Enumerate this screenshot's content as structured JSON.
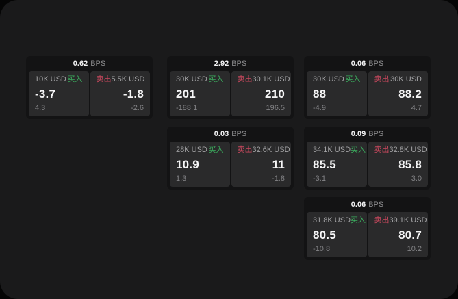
{
  "window": {
    "outer_background": "#050505",
    "panel_background": "#1a1a1b"
  },
  "colors": {
    "buy_green": "#3bae5e",
    "sell_red": "#c9485e",
    "card_background": "#131314",
    "tile_background": "#2a2a2b",
    "value_white": "#f5f5f6",
    "label_gray": "#a2a2a4",
    "sub_gray": "#828285"
  },
  "labels": {
    "bps_unit": "BPS",
    "buy": "买入",
    "sell": "卖出"
  },
  "cards": [
    {
      "row": 0,
      "col": 0,
      "bps": "0.62",
      "buy": {
        "size": "10K USD",
        "value": "-3.7",
        "sub": "4.3"
      },
      "sell": {
        "size": "5.5K USD",
        "value": "-1.8",
        "sub": "-2.6"
      }
    },
    {
      "row": 0,
      "col": 1,
      "bps": "2.92",
      "buy": {
        "size": "30K USD",
        "value": "201",
        "sub": "-188.1"
      },
      "sell": {
        "size": "30.1K USD",
        "value": "210",
        "sub": "196.5"
      }
    },
    {
      "row": 0,
      "col": 2,
      "bps": "0.06",
      "buy": {
        "size": "30K USD",
        "value": "88",
        "sub": "-4.9"
      },
      "sell": {
        "size": "30K USD",
        "value": "88.2",
        "sub": "4.7"
      }
    },
    {
      "row": 1,
      "col": 1,
      "bps": "0.03",
      "buy": {
        "size": "28K USD",
        "value": "10.9",
        "sub": "1.3"
      },
      "sell": {
        "size": "32.6K USD",
        "value": "11",
        "sub": "-1.8"
      }
    },
    {
      "row": 1,
      "col": 2,
      "bps": "0.09",
      "buy": {
        "size": "34.1K USD",
        "value": "85.5",
        "sub": "-3.1"
      },
      "sell": {
        "size": "32.8K USD",
        "value": "85.8",
        "sub": "3.0"
      }
    },
    {
      "row": 2,
      "col": 2,
      "bps": "0.06",
      "buy": {
        "size": "31.8K USD",
        "value": "80.5",
        "sub": "-10.8"
      },
      "sell": {
        "size": "39.1K USD",
        "value": "80.7",
        "sub": "10.2"
      }
    }
  ]
}
